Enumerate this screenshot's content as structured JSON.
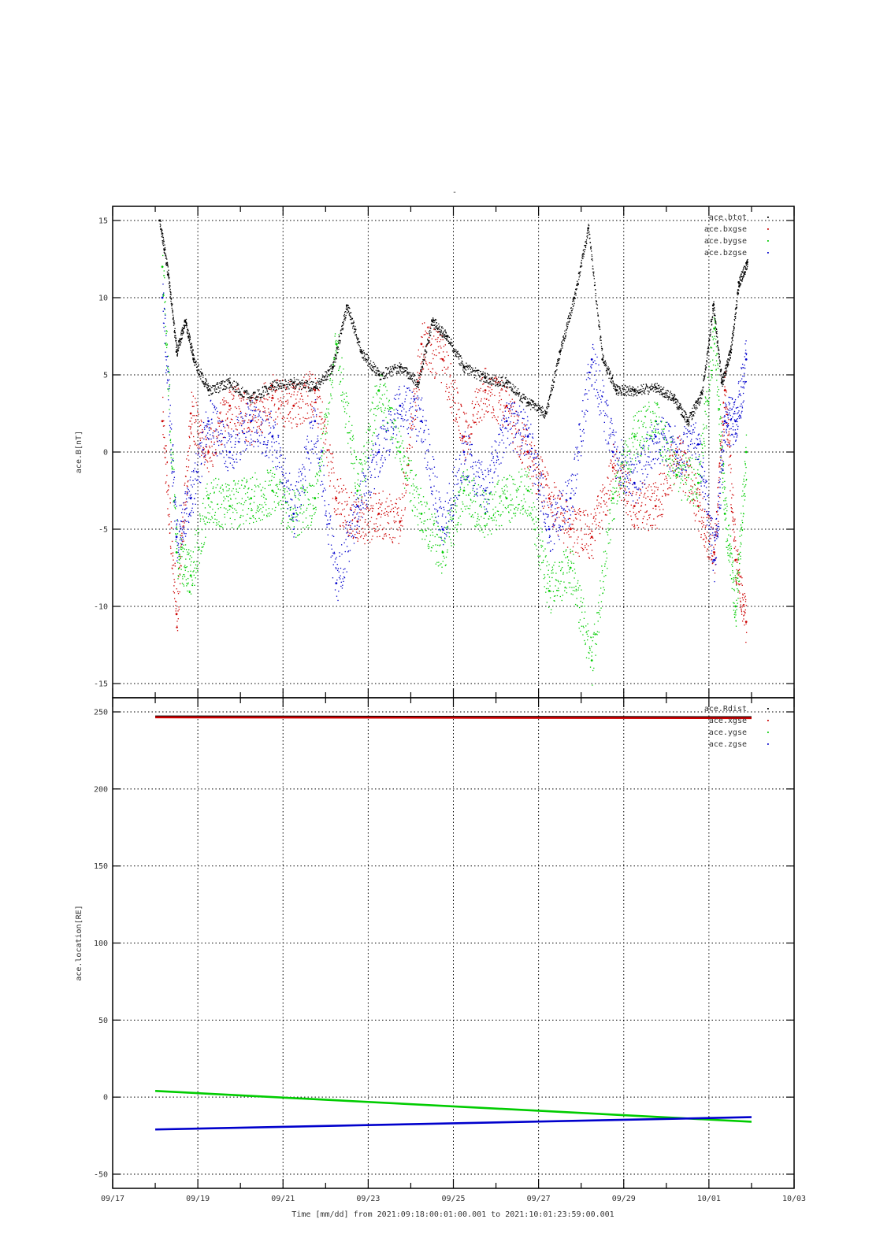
{
  "page": {
    "top_title": "-",
    "xlabel": "Time [mm/dd]  from 2021:09:18:00:01:00.001  to  2021:10:01:23:59:00.001"
  },
  "chart_data": [
    {
      "type": "scatter",
      "panel": "top",
      "ylabel": "ace.B[nT]",
      "ylim": [
        -15,
        15
      ],
      "yticks": [
        -15,
        -10,
        -5,
        0,
        5,
        10,
        15
      ],
      "xlim": [
        "09/17",
        "10/03"
      ],
      "xtick_labels": [
        "09/17",
        "09/19",
        "09/21",
        "09/23",
        "09/25",
        "09/27",
        "09/29",
        "10/01",
        "10/03"
      ],
      "grid": true,
      "legend_position": "top-right",
      "series": [
        {
          "name": "ace.btot",
          "color": "#000000",
          "x": [
            "09/18",
            "09/18",
            "09/18",
            "09/18",
            "09/18",
            "09/19",
            "09/19",
            "09/20",
            "09/20",
            "09/21",
            "09/21",
            "09/22",
            "09/22",
            "09/22",
            "09/23",
            "09/23",
            "09/24",
            "09/24",
            "09/24",
            "09/25",
            "09/25",
            "09/26",
            "09/26",
            "09/27",
            "09/27",
            "09/27",
            "09/28",
            "09/28",
            "09/28",
            "09/29",
            "09/29",
            "09/30",
            "09/30",
            "09/30",
            "10/01",
            "10/01",
            "10/01",
            "10/01",
            "10/01"
          ],
          "y": [
            15,
            11.5,
            6.5,
            8.5,
            6,
            4,
            4.5,
            3.5,
            4.3,
            4.5,
            4.2,
            5.5,
            9.5,
            6.5,
            5,
            5.5,
            4.5,
            8.5,
            7.5,
            5.5,
            4.8,
            4.5,
            3.2,
            2.5,
            6.5,
            10,
            14.5,
            6,
            4,
            4,
            4.2,
            3.5,
            2,
            3.8,
            9.5,
            4.5,
            6.5,
            11,
            12.3
          ]
        },
        {
          "name": "ace.bxgse",
          "color": "#cc0000",
          "x": [
            "09/18",
            "09/18",
            "09/18",
            "09/19",
            "09/19",
            "09/20",
            "09/20",
            "09/21",
            "09/21",
            "09/22",
            "09/22",
            "09/23",
            "09/23",
            "09/24",
            "09/24",
            "09/25",
            "09/25",
            "09/26",
            "09/26",
            "09/27",
            "09/27",
            "09/28",
            "09/28",
            "09/29",
            "09/29",
            "09/30",
            "09/30",
            "10/01",
            "10/01",
            "10/01",
            "10/01"
          ],
          "y": [
            2,
            -10.5,
            2.5,
            0,
            3,
            2,
            3.5,
            3,
            4,
            -3,
            -4.5,
            -4,
            -4.5,
            7,
            6,
            1,
            4,
            3,
            0,
            -3,
            -5,
            -5.5,
            -1,
            -3.5,
            -3.5,
            0,
            -3.5,
            -6.5,
            4,
            -7,
            -11
          ]
        },
        {
          "name": "ace.bygse",
          "color": "#00cc00",
          "x": [
            "09/18",
            "09/18",
            "09/18",
            "09/19",
            "09/19",
            "09/20",
            "09/20",
            "09/21",
            "09/21",
            "09/22",
            "09/22",
            "09/23",
            "09/23",
            "09/24",
            "09/24",
            "09/25",
            "09/25",
            "09/26",
            "09/26",
            "09/27",
            "09/27",
            "09/28",
            "09/28",
            "09/29",
            "09/29",
            "09/30",
            "09/30",
            "10/01",
            "10/01",
            "10/01",
            "10/01"
          ],
          "y": [
            12,
            -6.5,
            -8,
            -3,
            -3.5,
            -3,
            -2.5,
            -4,
            -3,
            7,
            -2.5,
            4,
            0,
            -4,
            -6.5,
            -2.5,
            -4,
            -3,
            -2.5,
            -9,
            -7.5,
            -13.5,
            -3,
            1,
            2,
            -1.5,
            -2,
            8,
            -4,
            -10,
            0
          ]
        },
        {
          "name": "ace.bzgse",
          "color": "#0000cc",
          "x": [
            "09/18",
            "09/18",
            "09/18",
            "09/19",
            "09/19",
            "09/20",
            "09/20",
            "09/21",
            "09/21",
            "09/22",
            "09/22",
            "09/23",
            "09/23",
            "09/24",
            "09/24",
            "09/25",
            "09/25",
            "09/26",
            "09/26",
            "09/27",
            "09/27",
            "09/28",
            "09/28",
            "09/29",
            "09/29",
            "09/30",
            "09/30",
            "10/01",
            "10/01",
            "10/01",
            "10/01"
          ],
          "y": [
            10,
            -5.5,
            -3,
            2,
            0,
            2,
            1,
            -4,
            2,
            -8.5,
            -3.5,
            0,
            3,
            2,
            -5,
            0,
            -2.5,
            2,
            1,
            -5,
            -3,
            6,
            0,
            -2,
            1,
            0,
            0.5,
            -7,
            2,
            2,
            6
          ]
        }
      ]
    },
    {
      "type": "line",
      "panel": "bottom",
      "ylabel": "ace.location[RE]",
      "ylim": [
        -50,
        250
      ],
      "yticks": [
        -50,
        0,
        50,
        100,
        150,
        200,
        250
      ],
      "xlim": [
        "09/17",
        "10/03"
      ],
      "xtick_labels": [
        "09/17",
        "09/19",
        "09/21",
        "09/23",
        "09/25",
        "09/27",
        "09/29",
        "10/01",
        "10/03"
      ],
      "grid": true,
      "legend_position": "top-right",
      "series": [
        {
          "name": "ace.Rdist",
          "color": "#000000",
          "x": [
            "09/18",
            "10/01"
          ],
          "y": [
            247,
            246.5
          ]
        },
        {
          "name": "ace.xgse",
          "color": "#cc0000",
          "x": [
            "09/18",
            "10/01"
          ],
          "y": [
            246.5,
            246
          ]
        },
        {
          "name": "ace.ygse",
          "color": "#00cc00",
          "x": [
            "09/18",
            "10/01"
          ],
          "y": [
            4,
            -16
          ]
        },
        {
          "name": "ace.zgse",
          "color": "#0000cc",
          "x": [
            "09/18",
            "10/01"
          ],
          "y": [
            -21,
            -13
          ]
        }
      ]
    }
  ]
}
